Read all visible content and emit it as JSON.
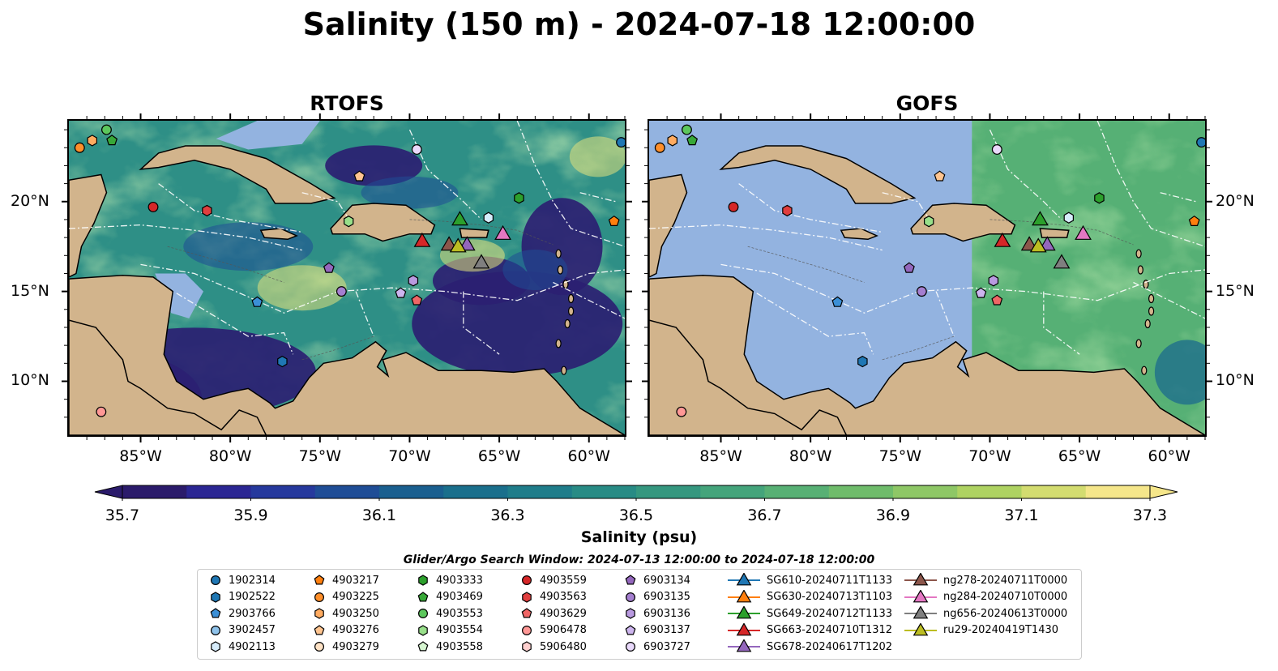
{
  "title": "Salinity (150 m) - 2024-07-18 12:00:00",
  "panels": [
    {
      "title": "RTOFS",
      "type": "rtofs"
    },
    {
      "title": "GOFS",
      "type": "gofs"
    }
  ],
  "lon_ticks": [
    "85°W",
    "80°W",
    "75°W",
    "70°W",
    "65°W",
    "60°W"
  ],
  "lat_ticks": [
    "20°N",
    "15°N",
    "10°N"
  ],
  "colorbar": {
    "label": "Salinity (psu)",
    "ticks": [
      "35.7",
      "35.9",
      "36.1",
      "36.3",
      "36.5",
      "36.7",
      "36.9",
      "37.1",
      "37.3"
    ],
    "colors": [
      "#2b1b6b",
      "#2b2693",
      "#26399d",
      "#1f4d96",
      "#1a5f8f",
      "#1a6f8c",
      "#1f7d8a",
      "#288b85",
      "#35977f",
      "#44a47b",
      "#57b074",
      "#6fbc6b",
      "#8ec766",
      "#aed262",
      "#d3dc70",
      "#f5e68a"
    ]
  },
  "search_window": "Glider/Argo Search Window: 2024-07-13 12:00:00 to 2024-07-18 12:00:00",
  "legend": [
    {
      "label": "1902314",
      "marker": "circle",
      "color": "#1f77b4"
    },
    {
      "label": "1902522",
      "marker": "hexagon",
      "color": "#1f77b4"
    },
    {
      "label": "2903766",
      "marker": "pentagon",
      "color": "#3b8fd6"
    },
    {
      "label": "3902457",
      "marker": "circle",
      "color": "#8fc3eb"
    },
    {
      "label": "4902113",
      "marker": "hexagon",
      "color": "#d6ecfb"
    },
    {
      "label": "4903217",
      "marker": "pentagon",
      "color": "#ff7f0e"
    },
    {
      "label": "4903225",
      "marker": "circle",
      "color": "#ff8f2a"
    },
    {
      "label": "4903250",
      "marker": "hexagon",
      "color": "#ffab60"
    },
    {
      "label": "4903276",
      "marker": "pentagon",
      "color": "#ffc590"
    },
    {
      "label": "4903279",
      "marker": "circle",
      "color": "#ffe3c6"
    },
    {
      "label": "4903333",
      "marker": "hexagon",
      "color": "#2ca02c"
    },
    {
      "label": "4903469",
      "marker": "pentagon",
      "color": "#38a838"
    },
    {
      "label": "4903553",
      "marker": "circle",
      "color": "#5cc75c"
    },
    {
      "label": "4903554",
      "marker": "hexagon",
      "color": "#98df8a"
    },
    {
      "label": "4903558",
      "marker": "pentagon",
      "color": "#d6f5d0"
    },
    {
      "label": "4903559",
      "marker": "circle",
      "color": "#d62728"
    },
    {
      "label": "4903563",
      "marker": "hexagon",
      "color": "#e03e3e"
    },
    {
      "label": "4903629",
      "marker": "pentagon",
      "color": "#f06666"
    },
    {
      "label": "5906478",
      "marker": "circle",
      "color": "#ff9896"
    },
    {
      "label": "5906480",
      "marker": "hexagon",
      "color": "#ffd0cf"
    },
    {
      "label": "6903134",
      "marker": "pentagon",
      "color": "#9467bd"
    },
    {
      "label": "6903135",
      "marker": "circle",
      "color": "#a57fd0"
    },
    {
      "label": "6903136",
      "marker": "hexagon",
      "color": "#b99ae0"
    },
    {
      "label": "6903137",
      "marker": "pentagon",
      "color": "#cdb5ee"
    },
    {
      "label": "6903727",
      "marker": "circle",
      "color": "#e9d9fb"
    },
    {
      "label": "SG610-20240711T1133",
      "marker": "triangle",
      "color": "#1f77b4"
    },
    {
      "label": "SG630-20240713T1103",
      "marker": "triangle",
      "color": "#ff7f0e"
    },
    {
      "label": "SG649-20240712T1133",
      "marker": "triangle",
      "color": "#2ca02c"
    },
    {
      "label": "SG663-20240710T1312",
      "marker": "triangle",
      "color": "#d62728"
    },
    {
      "label": "SG678-20240617T1202",
      "marker": "triangle",
      "color": "#9467bd"
    },
    {
      "label": "ng278-20240711T0000",
      "marker": "triangle",
      "color": "#8c564b"
    },
    {
      "label": "ng284-20240710T0000",
      "marker": "triangle",
      "color": "#e377c2"
    },
    {
      "label": "ng656-20240613T0000",
      "marker": "triangle",
      "color": "#7f7f7f"
    },
    {
      "label": "ru29-20240419T1430",
      "marker": "triangle",
      "color": "#bcbd22"
    }
  ],
  "floats": [
    {
      "id": "1902314",
      "lon": -58.2,
      "lat": 23.3
    },
    {
      "id": "4903217",
      "lon": -58.6,
      "lat": 18.9
    },
    {
      "id": "4903225",
      "lon": -88.4,
      "lat": 23.0
    },
    {
      "id": "4903250",
      "lon": -87.7,
      "lat": 23.4
    },
    {
      "id": "4903553",
      "lon": -86.9,
      "lat": 24.0
    },
    {
      "id": "4903469",
      "lon": -86.6,
      "lat": 23.4
    },
    {
      "id": "4903276",
      "lon": -72.8,
      "lat": 21.4
    },
    {
      "id": "4903559",
      "lon": -84.3,
      "lat": 19.7
    },
    {
      "id": "4903563",
      "lon": -81.3,
      "lat": 19.5
    },
    {
      "id": "6903727",
      "lon": -69.6,
      "lat": 22.9
    },
    {
      "id": "4903333",
      "lon": -63.9,
      "lat": 20.2
    },
    {
      "id": "4903554",
      "lon": -73.4,
      "lat": 18.9
    },
    {
      "id": "4902113",
      "lon": -65.6,
      "lat": 19.1
    },
    {
      "id": "6903134",
      "lon": -74.5,
      "lat": 16.3
    },
    {
      "id": "6903135",
      "lon": -73.8,
      "lat": 15.0
    },
    {
      "id": "6903136",
      "lon": -69.8,
      "lat": 15.6
    },
    {
      "id": "6903137",
      "lon": -70.5,
      "lat": 14.9
    },
    {
      "id": "4903629",
      "lon": -69.6,
      "lat": 14.5
    },
    {
      "id": "2903766",
      "lon": -78.5,
      "lat": 14.4
    },
    {
      "id": "1902522",
      "lon": -77.1,
      "lat": 11.1
    },
    {
      "id": "5906478",
      "lon": -87.2,
      "lat": 8.3
    }
  ],
  "gliders": [
    {
      "id": "SG649-20240712T1133",
      "lon": -67.2,
      "lat": 18.9
    },
    {
      "id": "SG663-20240710T1312",
      "lon": -69.3,
      "lat": 17.7
    },
    {
      "id": "ng278-20240711T0000",
      "lon": -67.8,
      "lat": 17.5
    },
    {
      "id": "SG678-20240617T1202",
      "lon": -66.8,
      "lat": 17.5
    },
    {
      "id": "ng284-20240710T0000",
      "lon": -64.8,
      "lat": 18.1
    },
    {
      "id": "ru29-20240419T1430",
      "lon": -67.3,
      "lat": 17.4
    },
    {
      "id": "ng656-20240613T0000",
      "lon": -66.0,
      "lat": 16.5
    }
  ],
  "map_extent": {
    "lon": [
      -89,
      -58
    ],
    "lat": [
      7,
      24.5
    ]
  }
}
